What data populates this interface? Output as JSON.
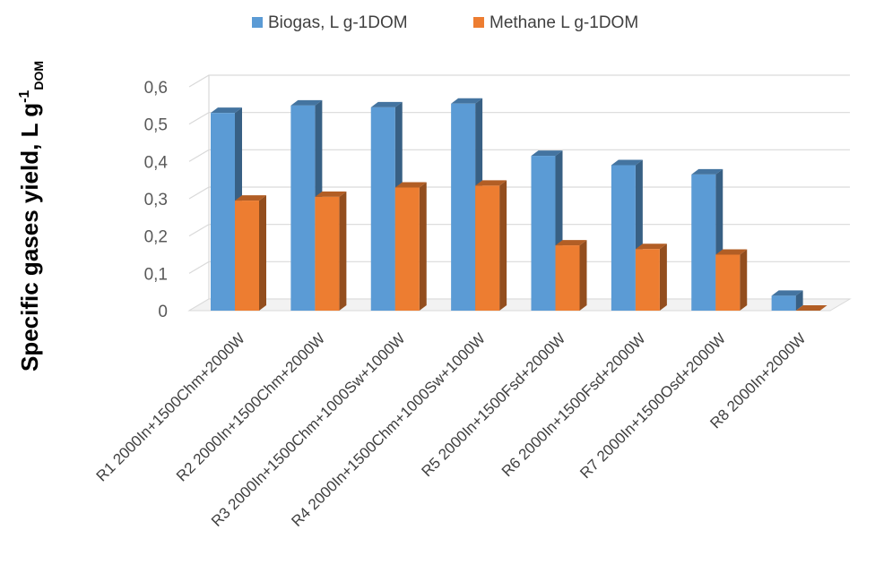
{
  "chart_data": {
    "type": "bar",
    "categories": [
      "R1 2000In+1500Chm+2000W",
      "R2 2000In+1500Chm+2000W",
      "R3 2000In+1500Chm+1000Sw+1000W",
      "R4 2000In+1500Chm+1000Sw+1000W",
      "R5 2000In+1500Fsd+2000W",
      "R6 2000In+1500Fsd+2000W",
      "R7 2000In+1500Osd+2000W",
      "R8 2000In+2000W"
    ],
    "series": [
      {
        "name": "Biogas, L g-1DOM",
        "color": "#5B9BD5",
        "values": [
          0.53,
          0.55,
          0.545,
          0.555,
          0.415,
          0.39,
          0.365,
          0.04
        ]
      },
      {
        "name": "Methane L g-1DOM",
        "color": "#ED7D31",
        "values": [
          0.295,
          0.305,
          0.33,
          0.335,
          0.175,
          0.165,
          0.15,
          0.0
        ]
      }
    ],
    "yticks": [
      "0",
      "0,1",
      "0,2",
      "0,3",
      "0,4",
      "0,5",
      "0,6"
    ],
    "ylim": [
      0,
      0.6
    ],
    "ylabel": {
      "main": "Specific gases yield, L g",
      "sup": "-1",
      "sub": "DOM"
    },
    "legend_position": "top",
    "grid": true
  }
}
